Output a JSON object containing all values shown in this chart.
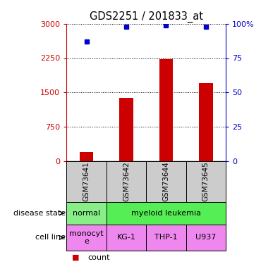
{
  "title": "GDS2251 / 201833_at",
  "samples": [
    "GSM73641",
    "GSM73642",
    "GSM73644",
    "GSM73645"
  ],
  "counts": [
    200,
    1380,
    2220,
    1700
  ],
  "percentiles": [
    87,
    98,
    99,
    98
  ],
  "ylim_left": [
    0,
    3000
  ],
  "ylim_right": [
    0,
    100
  ],
  "yticks_left": [
    0,
    750,
    1500,
    2250,
    3000
  ],
  "yticks_right": [
    0,
    25,
    50,
    75,
    100
  ],
  "ytick_labels_left": [
    "0",
    "750",
    "1500",
    "2250",
    "3000"
  ],
  "ytick_labels_right": [
    "0",
    "25",
    "50",
    "75",
    "100%"
  ],
  "bar_color": "#cc0000",
  "dot_color": "#0000cc",
  "left_axis_color": "#cc0000",
  "right_axis_color": "#0000cc",
  "cell_line": [
    "monocyt\ne",
    "KG-1",
    "THP-1",
    "U937"
  ],
  "sample_bg_color": "#cccccc",
  "disease_green_light": "#88ee88",
  "disease_green_bright": "#55ee55",
  "cell_pink": "#ee88ee",
  "legend_square_size": 8
}
